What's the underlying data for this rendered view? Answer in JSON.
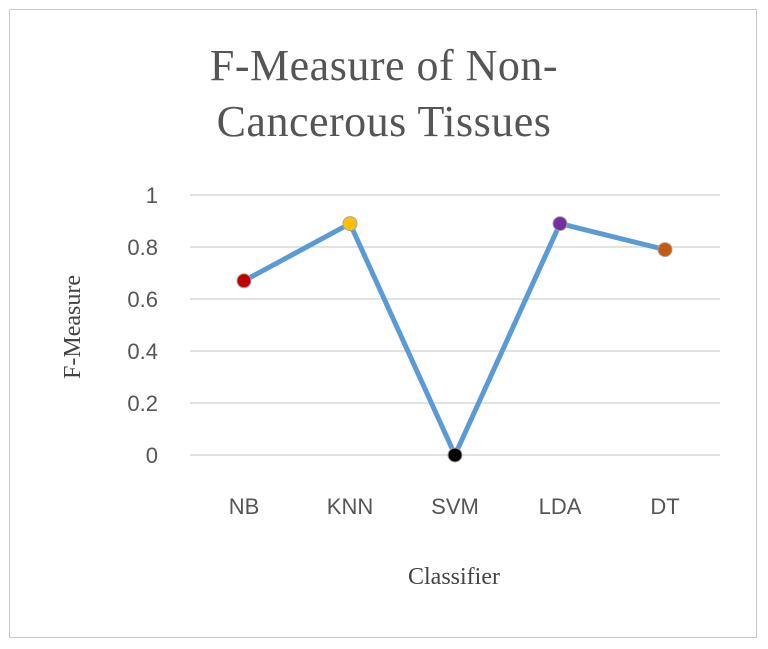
{
  "chart_data": {
    "type": "line",
    "title_lines": [
      "F-Measure of Non-",
      "Cancerous Tissues"
    ],
    "xlabel": "Classifier",
    "ylabel": "F-Measure",
    "categories": [
      "NB",
      "KNN",
      "SVM",
      "LDA",
      "DT"
    ],
    "series": [
      {
        "values": [
          0.67,
          0.89,
          0.0,
          0.89,
          0.79
        ],
        "line_color": "#5b9bd5",
        "point_colors": [
          "#c00000",
          "#ffc000",
          "#000000",
          "#7030a0",
          "#c55a11"
        ]
      }
    ],
    "ylim": [
      0,
      1
    ],
    "yticks": [
      "0",
      "0.2",
      "0.4",
      "0.6",
      "0.8",
      "1"
    ],
    "ytick_values": [
      0,
      0.2,
      0.4,
      0.6,
      0.8,
      1
    ],
    "grid": true,
    "legend": "none"
  }
}
